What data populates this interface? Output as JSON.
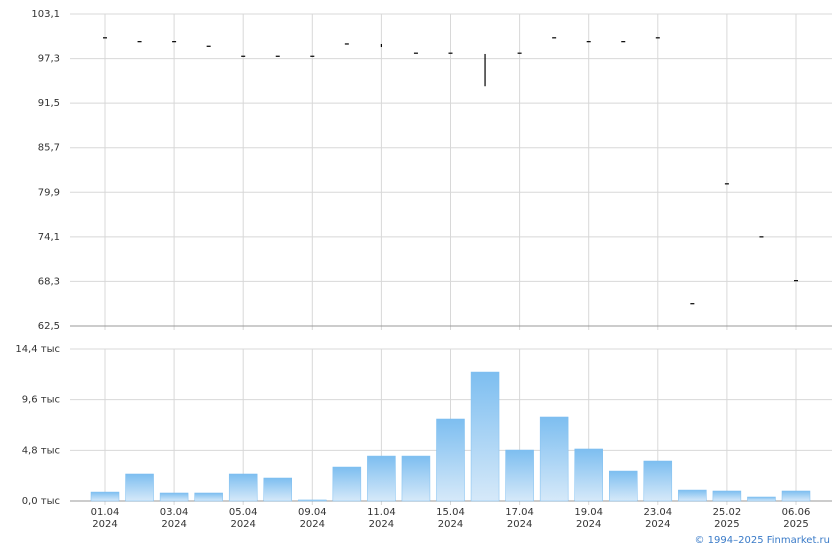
{
  "chart_data": [
    {
      "type": "range",
      "color": "#000000",
      "categories": [
        "01.04\n2024",
        null,
        "03.04\n2024",
        null,
        "05.04\n2024",
        null,
        "09.04\n2024",
        null,
        "11.04\n2024",
        null,
        "15.04\n2024",
        null,
        "17.04\n2024",
        null,
        "19.04\n2024",
        null,
        "23.04\n2024",
        null,
        "25.02\n2025",
        null,
        "06.06\n2025"
      ],
      "series": [
        {
          "name": "high",
          "values": [
            100.0,
            99.5,
            99.5,
            98.9,
            97.6,
            97.6,
            97.6,
            99.2,
            99.2,
            98.0,
            98.0,
            97.9,
            98.0,
            100.0,
            99.5,
            99.5,
            100.0,
            65.4,
            81.0,
            74.1,
            68.4
          ]
        },
        {
          "name": "low",
          "values": [
            100.0,
            99.5,
            99.5,
            98.9,
            97.6,
            97.6,
            97.6,
            99.2,
            98.8,
            98.0,
            98.0,
            93.7,
            98.0,
            100.0,
            99.5,
            99.5,
            100.0,
            65.4,
            81.0,
            74.1,
            68.4
          ]
        }
      ],
      "ylim": [
        62.5,
        103.1
      ],
      "yticks": [
        {
          "value": 62.5,
          "label": "62,5"
        },
        {
          "value": 68.3,
          "label": "68,3"
        },
        {
          "value": 74.1,
          "label": "74,1"
        },
        {
          "value": 79.9,
          "label": "79,9"
        },
        {
          "value": 85.7,
          "label": "85,7"
        },
        {
          "value": 91.5,
          "label": "91,5"
        },
        {
          "value": 97.3,
          "label": "97,3"
        },
        {
          "value": 103.1,
          "label": "103,1"
        }
      ],
      "grid": true
    },
    {
      "type": "bar",
      "color": "#7dbef0",
      "values": [
        850,
        2560,
        760,
        760,
        2560,
        2180,
        100,
        3220,
        4260,
        4260,
        7770,
        12220,
        4830,
        7960,
        4930,
        2840,
        3790,
        1040,
        950,
        380,
        950
      ],
      "ylim": [
        0,
        14400
      ],
      "yticks": [
        {
          "value": 0,
          "label": "0,0 тыс"
        },
        {
          "value": 4800,
          "label": "4,8 тыс"
        },
        {
          "value": 9600,
          "label": "9,6 тыс"
        },
        {
          "value": 14400,
          "label": "14,4 тыс"
        }
      ],
      "grid": true
    }
  ],
  "footer": "© 1994–2025 Finmarket.ru"
}
